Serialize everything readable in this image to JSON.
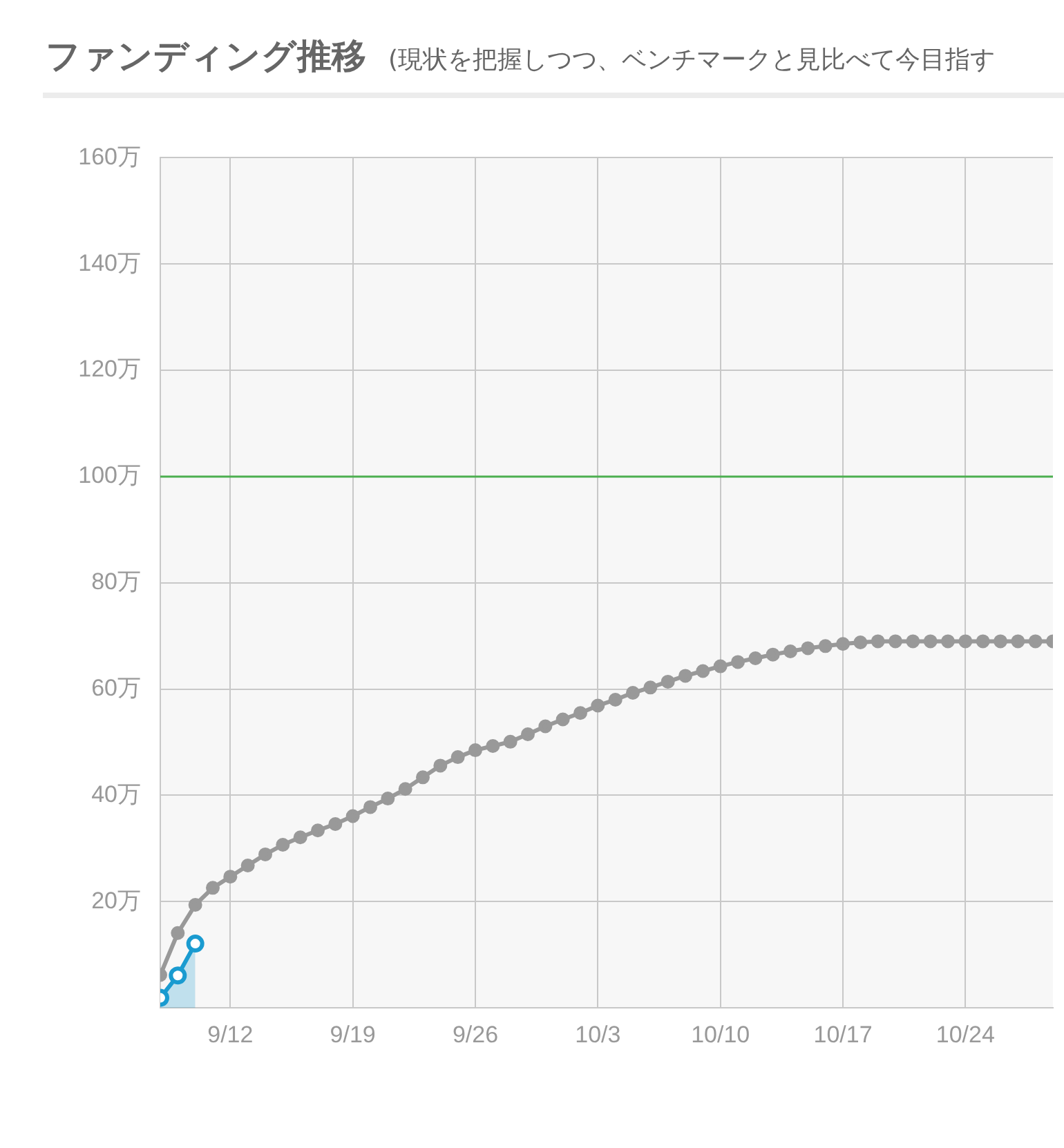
{
  "chart_data": {
    "type": "line",
    "title": "ファンディング推移",
    "subtitle": "(現状を把握しつつ、ベンチマークと見比べて今目指す",
    "xlim": [
      "--09-08",
      "--10-29"
    ],
    "xticks": [
      {
        "value": "--09-12",
        "label": "9/12"
      },
      {
        "value": "--09-19",
        "label": "9/19"
      },
      {
        "value": "--09-26",
        "label": "9/26"
      },
      {
        "value": "--10-03",
        "label": "10/3"
      },
      {
        "value": "--10-10",
        "label": "10/10"
      },
      {
        "value": "--10-17",
        "label": "10/17"
      },
      {
        "value": "--10-24",
        "label": "10/24"
      }
    ],
    "ylim": [
      0,
      160
    ],
    "yticks": [
      {
        "value": 0,
        "label": null
      },
      {
        "value": 20,
        "label": "20万"
      },
      {
        "value": 40,
        "label": "40万"
      },
      {
        "value": 60,
        "label": "60万"
      },
      {
        "value": 80,
        "label": "80万"
      },
      {
        "value": 100,
        "label": "100万"
      },
      {
        "value": 120,
        "label": "120万"
      },
      {
        "value": 140,
        "label": "140万"
      },
      {
        "value": 160,
        "label": "160万"
      }
    ],
    "grid": true,
    "marker": "circle",
    "line_style": "solid",
    "ref_lines": [
      {
        "axis": "y",
        "value": 100,
        "color": "#4caf50"
      }
    ],
    "series": [
      {
        "color": "#999999",
        "x": [
          "--09-08",
          "--09-09",
          "--09-10",
          "--09-11",
          "--09-12",
          "--09-13",
          "--09-14",
          "--09-15",
          "--09-16",
          "--09-17",
          "--09-18",
          "--09-19",
          "--09-20",
          "--09-21",
          "--09-22",
          "--09-23",
          "--09-24",
          "--09-25",
          "--09-26",
          "--09-27",
          "--09-28",
          "--09-29",
          "--09-30",
          "--10-01",
          "--10-02",
          "--10-03",
          "--10-04",
          "--10-05",
          "--10-06",
          "--10-07",
          "--10-08",
          "--10-09",
          "--10-10",
          "--10-11",
          "--10-12",
          "--10-13",
          "--10-14",
          "--10-15",
          "--10-16",
          "--10-17",
          "--10-18",
          "--10-19",
          "--10-20",
          "--10-21",
          "--10-22",
          "--10-23",
          "--10-24",
          "--10-25",
          "--10-26",
          "--10-27",
          "--10-28",
          "--10-29"
        ],
        "values": [
          6.2,
          14.1,
          19.4,
          22.6,
          24.7,
          26.8,
          28.9,
          30.7,
          32.1,
          33.4,
          34.6,
          36.1,
          37.8,
          39.4,
          41.2,
          43.4,
          45.6,
          47.2,
          48.5,
          49.3,
          50.1,
          51.5,
          53.0,
          54.3,
          55.5,
          56.9,
          58.0,
          59.3,
          60.3,
          61.4,
          62.5,
          63.4,
          64.3,
          65.1,
          65.8,
          66.5,
          67.1,
          67.7,
          68.1,
          68.5,
          68.8,
          69.0,
          69.0,
          69.0,
          69.0,
          69.0,
          69.0,
          69.0,
          69.0,
          69.0,
          69.0,
          69.0
        ]
      },
      {
        "type": "area",
        "color": "#1a9bd0",
        "x": [
          "--09-08",
          "--09-09",
          "--09-10"
        ],
        "values": [
          1.9,
          6.1,
          12.1
        ]
      }
    ]
  }
}
